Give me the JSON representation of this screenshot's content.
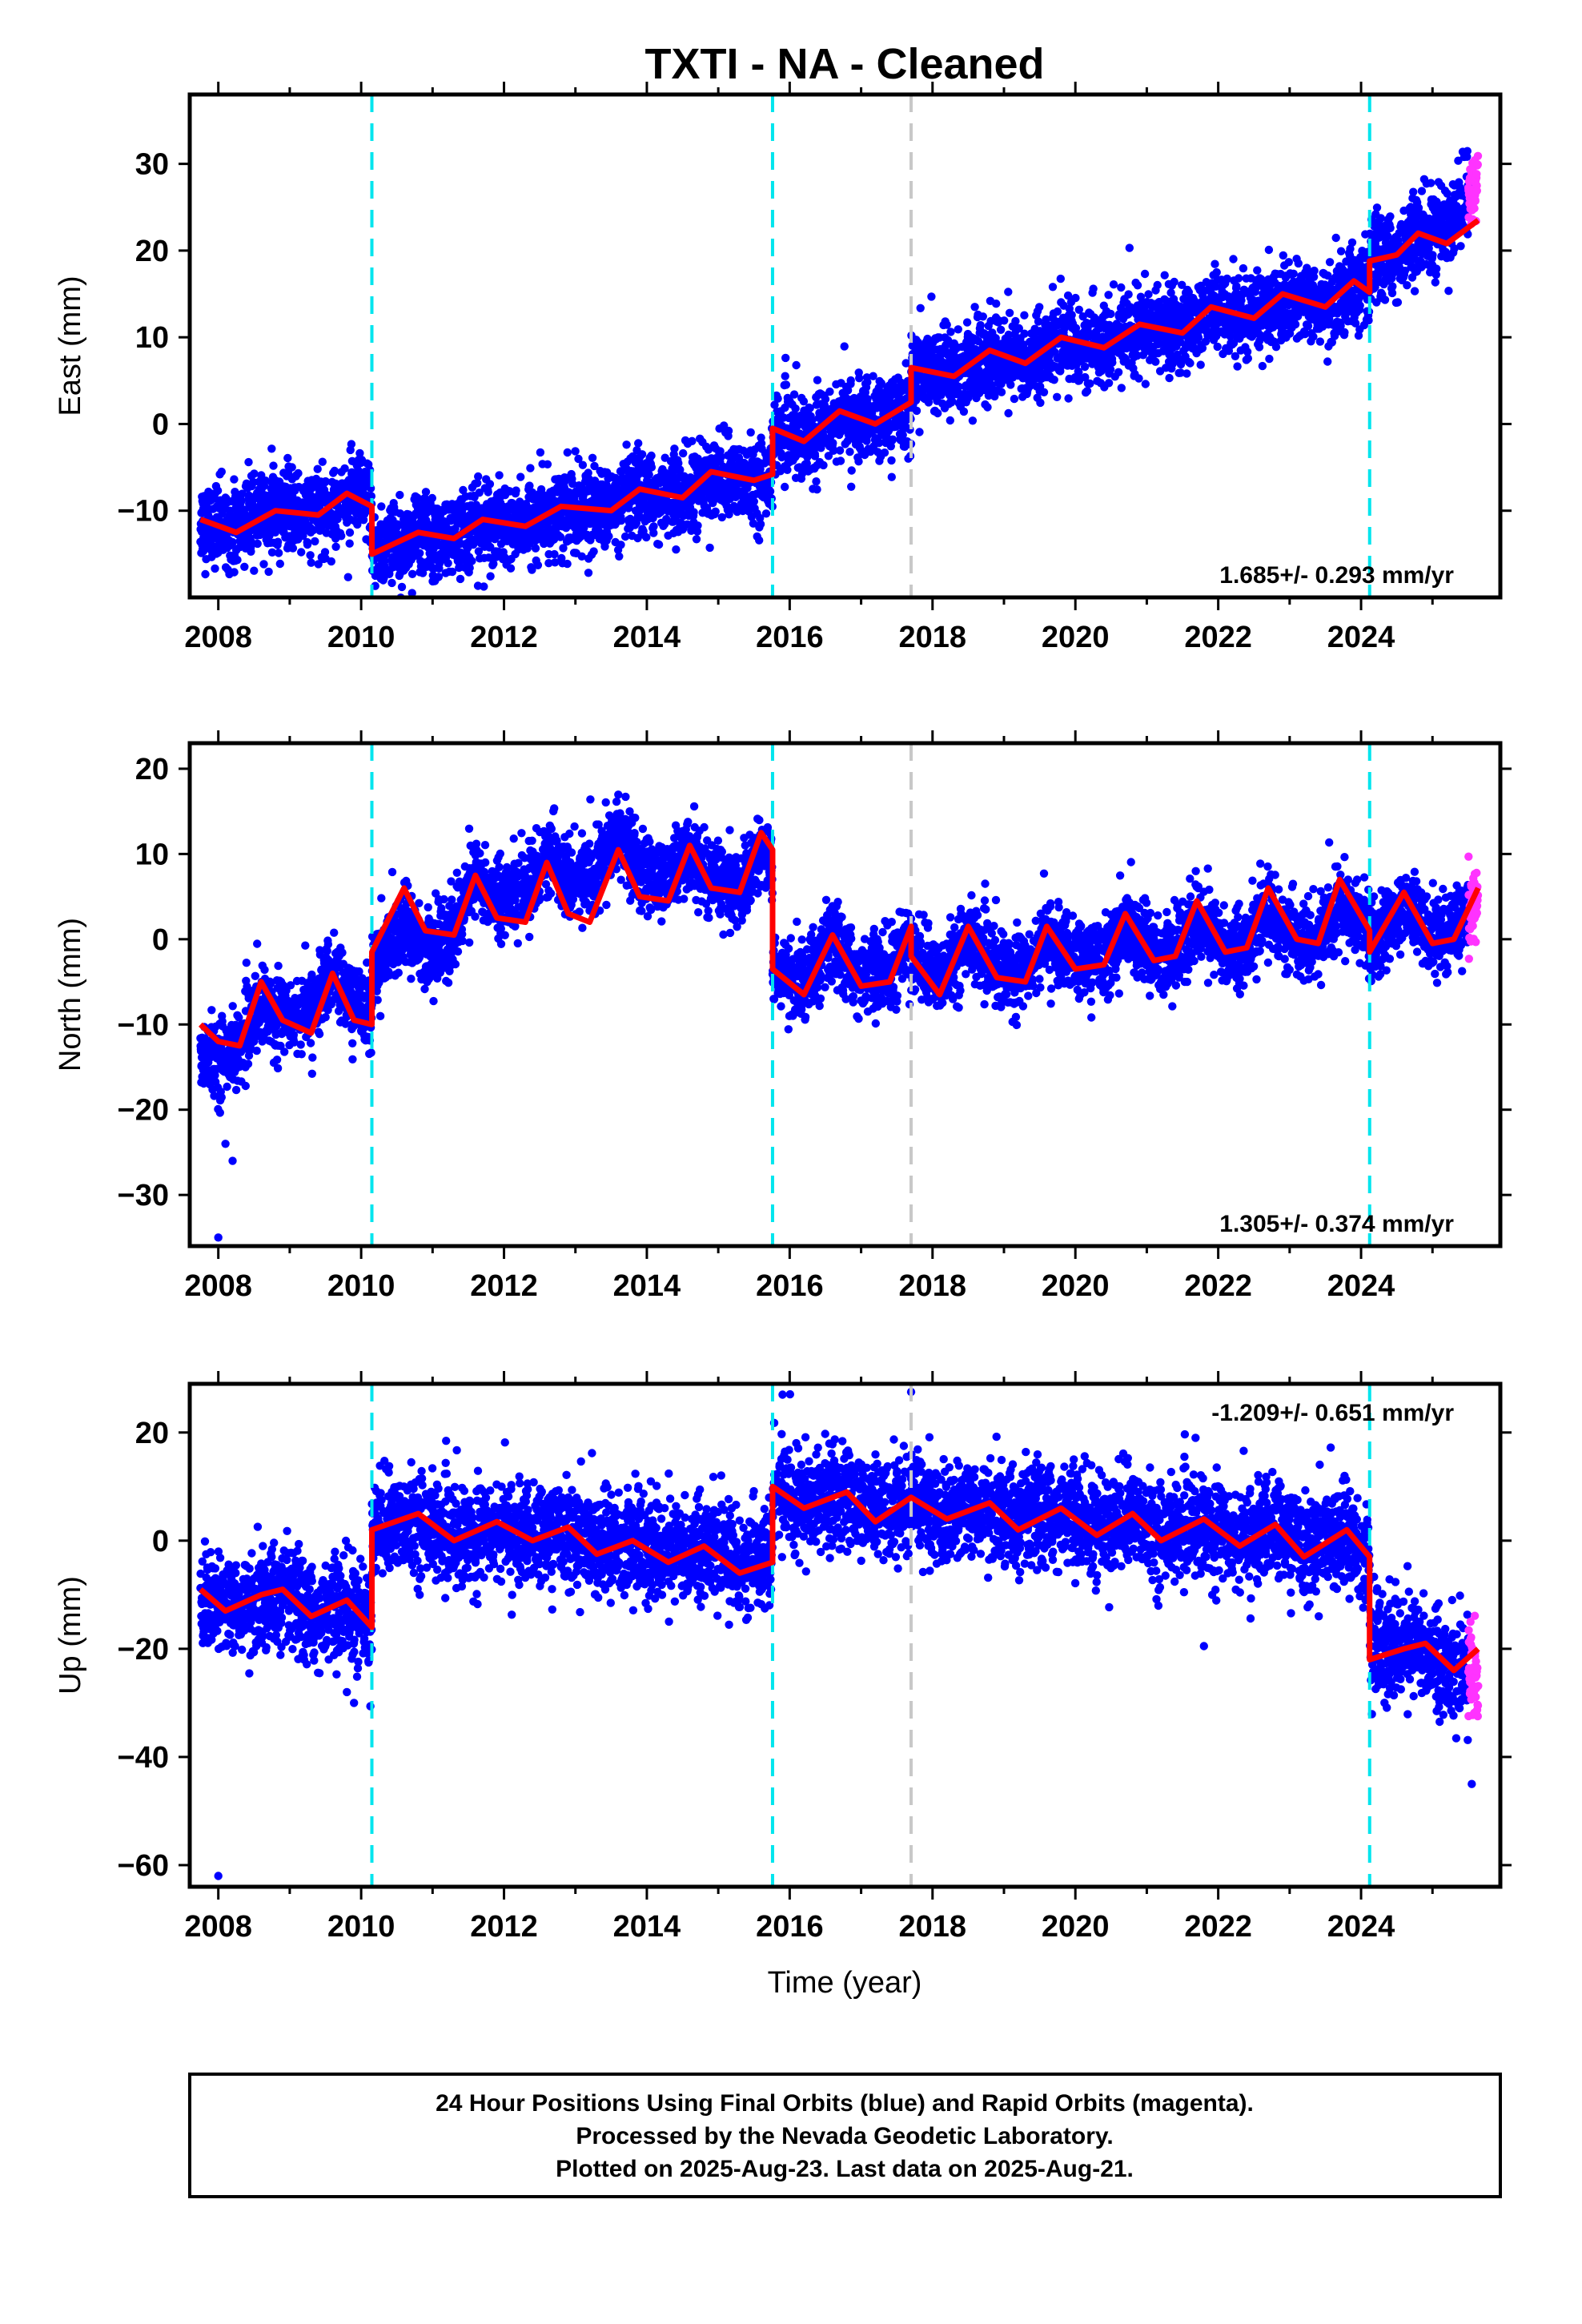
{
  "title": "TXTI  - NA - Cleaned",
  "xlabel": "Time (year)",
  "x_tick_labels": [
    "2008",
    "2010",
    "2012",
    "2014",
    "2016",
    "2018",
    "2020",
    "2022",
    "2024"
  ],
  "footer": {
    "line1": "24 Hour Positions Using Final Orbits (blue) and Rapid Orbits (magenta).",
    "line2": "Processed by the Nevada Geodetic Laboratory.",
    "line3": "Plotted on 2025-Aug-23. Last data on 2025-Aug-21."
  },
  "colors": {
    "final_orbits": "#0000ff",
    "rapid_orbits": "#ff33ff",
    "model_fit": "#ff0000",
    "equipment_change": "#00e5ee",
    "earthquake_line": "#c8c8c8"
  },
  "chart_data": [
    {
      "type": "scatter",
      "component": "East",
      "ylabel": "East (mm)",
      "xlim": [
        2007.6,
        2025.95
      ],
      "ylim": [
        -20,
        38
      ],
      "yticks": [
        -10,
        0,
        10,
        20,
        30
      ],
      "rate_label": "1.685+/- 0.293 mm/yr",
      "rate_position": "bottom-right",
      "data_span": [
        2007.75,
        2025.64
      ],
      "rapid_span": [
        2025.5,
        2025.64
      ],
      "cyan_dashed_lines": [
        2010.15,
        2015.76,
        2024.12
      ],
      "gray_dashed_lines": [
        2017.7
      ],
      "trend_points": [
        [
          2007.75,
          -11.5
        ],
        [
          2010.15,
          -8.5
        ],
        [
          2010.15,
          -14.5
        ],
        [
          2015.76,
          -6.5
        ],
        [
          2015.76,
          -1.5
        ],
        [
          2017.7,
          1
        ],
        [
          2017.7,
          5.5
        ],
        [
          2024.12,
          15
        ],
        [
          2024.12,
          18.5
        ],
        [
          2024.6,
          20
        ],
        [
          2025.0,
          23
        ],
        [
          2025.3,
          27.5
        ],
        [
          2025.64,
          33
        ]
      ],
      "model_points": [
        [
          2007.75,
          -11.0
        ],
        [
          2008.25,
          -12.5
        ],
        [
          2008.8,
          -10.0
        ],
        [
          2009.4,
          -10.5
        ],
        [
          2009.8,
          -8.0
        ],
        [
          2010.15,
          -9.5
        ],
        [
          2010.15,
          -15.0
        ],
        [
          2010.8,
          -12.5
        ],
        [
          2011.3,
          -13.2
        ],
        [
          2011.7,
          -11.0
        ],
        [
          2012.3,
          -11.8
        ],
        [
          2012.8,
          -9.5
        ],
        [
          2013.5,
          -10.0
        ],
        [
          2013.9,
          -7.5
        ],
        [
          2014.5,
          -8.5
        ],
        [
          2014.9,
          -5.5
        ],
        [
          2015.5,
          -6.5
        ],
        [
          2015.76,
          -5.8
        ],
        [
          2015.76,
          -0.5
        ],
        [
          2016.2,
          -2.0
        ],
        [
          2016.7,
          1.5
        ],
        [
          2017.2,
          0
        ],
        [
          2017.7,
          2.5
        ],
        [
          2017.7,
          6.5
        ],
        [
          2018.3,
          5.5
        ],
        [
          2018.8,
          8.5
        ],
        [
          2019.3,
          7.0
        ],
        [
          2019.8,
          10.0
        ],
        [
          2020.4,
          8.8
        ],
        [
          2020.9,
          11.5
        ],
        [
          2021.5,
          10.5
        ],
        [
          2021.9,
          13.5
        ],
        [
          2022.5,
          12.2
        ],
        [
          2022.9,
          15.0
        ],
        [
          2023.5,
          13.5
        ],
        [
          2023.9,
          16.5
        ],
        [
          2024.12,
          15.2
        ],
        [
          2024.12,
          18.8
        ],
        [
          2024.5,
          19.5
        ],
        [
          2024.8,
          22.0
        ],
        [
          2025.2,
          20.8
        ],
        [
          2025.64,
          23.5
        ]
      ],
      "noise_mm": 2.3,
      "outliers": [
        [
          2010.2,
          -17.5
        ],
        [
          2011.5,
          -17.0
        ],
        [
          2009.3,
          -16.0
        ]
      ]
    },
    {
      "type": "scatter",
      "component": "North",
      "ylabel": "North (mm)",
      "xlim": [
        2007.6,
        2025.95
      ],
      "ylim": [
        -36,
        23
      ],
      "yticks": [
        -30,
        -20,
        -10,
        0,
        10,
        20
      ],
      "rate_label": "1.305+/- 0.374 mm/yr",
      "rate_position": "bottom-right",
      "data_span": [
        2007.75,
        2025.64
      ],
      "rapid_span": [
        2025.5,
        2025.64
      ],
      "cyan_dashed_lines": [
        2010.15,
        2015.76,
        2024.12
      ],
      "gray_dashed_lines": [
        2017.7
      ],
      "trend_points": [
        [
          2007.75,
          -19
        ],
        [
          2008.25,
          -14
        ],
        [
          2008.8,
          -9
        ],
        [
          2009.4,
          -4
        ],
        [
          2010.15,
          -5
        ],
        [
          2010.15,
          -7
        ],
        [
          2011.0,
          -4
        ],
        [
          2011.5,
          6
        ],
        [
          2012.5,
          12
        ],
        [
          2013.5,
          15
        ],
        [
          2014.5,
          9
        ],
        [
          2015.76,
          6
        ],
        [
          2015.76,
          -3
        ],
        [
          2017.7,
          -2
        ],
        [
          2024.12,
          0
        ],
        [
          2025.64,
          3
        ]
      ],
      "model_points": [
        [
          2007.75,
          -10.0
        ],
        [
          2008.0,
          -12.0
        ],
        [
          2008.3,
          -12.5
        ],
        [
          2008.6,
          -5.0
        ],
        [
          2008.9,
          -9.5
        ],
        [
          2009.3,
          -11.0
        ],
        [
          2009.6,
          -4.0
        ],
        [
          2009.9,
          -9.5
        ],
        [
          2010.15,
          -10.0
        ],
        [
          2010.15,
          -1.5
        ],
        [
          2010.6,
          6.0
        ],
        [
          2010.9,
          1.0
        ],
        [
          2011.3,
          0.5
        ],
        [
          2011.6,
          7.5
        ],
        [
          2011.9,
          2.5
        ],
        [
          2012.3,
          2.0
        ],
        [
          2012.6,
          9.0
        ],
        [
          2012.9,
          3.0
        ],
        [
          2013.2,
          2.0
        ],
        [
          2013.6,
          10.5
        ],
        [
          2013.9,
          5.0
        ],
        [
          2014.3,
          4.5
        ],
        [
          2014.6,
          11.0
        ],
        [
          2014.9,
          6.0
        ],
        [
          2015.3,
          5.5
        ],
        [
          2015.6,
          12.5
        ],
        [
          2015.76,
          10.5
        ],
        [
          2015.76,
          -3.5
        ],
        [
          2016.2,
          -6.5
        ],
        [
          2016.6,
          0.5
        ],
        [
          2017.0,
          -5.5
        ],
        [
          2017.4,
          -5.0
        ],
        [
          2017.7,
          1.5
        ],
        [
          2017.7,
          -2.0
        ],
        [
          2018.1,
          -6.5
        ],
        [
          2018.5,
          1.5
        ],
        [
          2018.9,
          -4.5
        ],
        [
          2019.3,
          -5.0
        ],
        [
          2019.6,
          1.5
        ],
        [
          2020.0,
          -3.5
        ],
        [
          2020.4,
          -3.0
        ],
        [
          2020.7,
          3.0
        ],
        [
          2021.1,
          -2.5
        ],
        [
          2021.4,
          -2.0
        ],
        [
          2021.7,
          4.5
        ],
        [
          2022.1,
          -1.5
        ],
        [
          2022.4,
          -1.0
        ],
        [
          2022.7,
          6.0
        ],
        [
          2023.1,
          0
        ],
        [
          2023.4,
          -0.5
        ],
        [
          2023.7,
          7.0
        ],
        [
          2024.12,
          1.0
        ],
        [
          2024.12,
          -1.5
        ],
        [
          2024.6,
          5.5
        ],
        [
          2025.0,
          -0.5
        ],
        [
          2025.3,
          0
        ],
        [
          2025.64,
          6.0
        ]
      ],
      "noise_mm": 2.2,
      "outliers": [
        [
          2008.0,
          -35.0
        ],
        [
          2008.1,
          -24.0
        ],
        [
          2008.2,
          -26.0
        ]
      ]
    },
    {
      "type": "scatter",
      "component": "Up",
      "ylabel": "Up (mm)",
      "xlim": [
        2007.6,
        2025.95
      ],
      "ylim": [
        -64,
        29
      ],
      "yticks": [
        -60,
        -40,
        -20,
        0,
        20
      ],
      "rate_label": "-1.209+/- 0.651 mm/yr",
      "rate_position": "top-right",
      "data_span": [
        2007.75,
        2025.64
      ],
      "rapid_span": [
        2025.5,
        2025.64
      ],
      "cyan_dashed_lines": [
        2010.15,
        2015.76,
        2024.12
      ],
      "gray_dashed_lines": [
        2017.7
      ],
      "trend_points": [
        [
          2007.75,
          -11
        ],
        [
          2010.15,
          -15
        ],
        [
          2010.15,
          2
        ],
        [
          2015.76,
          -1
        ],
        [
          2015.76,
          8
        ],
        [
          2023.5,
          1
        ],
        [
          2024.12,
          -5
        ],
        [
          2024.12,
          -15
        ],
        [
          2025.0,
          -22
        ],
        [
          2025.64,
          -30
        ]
      ],
      "model_points": [
        [
          2007.75,
          -9
        ],
        [
          2008.1,
          -13
        ],
        [
          2008.6,
          -10
        ],
        [
          2008.9,
          -9
        ],
        [
          2009.3,
          -14
        ],
        [
          2009.8,
          -11
        ],
        [
          2010.15,
          -16
        ],
        [
          2010.15,
          2
        ],
        [
          2010.8,
          5
        ],
        [
          2011.3,
          0
        ],
        [
          2011.9,
          3.5
        ],
        [
          2012.4,
          0
        ],
        [
          2012.9,
          2.5
        ],
        [
          2013.3,
          -2.5
        ],
        [
          2013.8,
          0
        ],
        [
          2014.3,
          -4
        ],
        [
          2014.8,
          -1
        ],
        [
          2015.3,
          -6
        ],
        [
          2015.76,
          -4
        ],
        [
          2015.76,
          10
        ],
        [
          2016.2,
          6
        ],
        [
          2016.8,
          9
        ],
        [
          2017.2,
          3.5
        ],
        [
          2017.7,
          8
        ],
        [
          2018.2,
          4
        ],
        [
          2018.8,
          7
        ],
        [
          2019.2,
          2
        ],
        [
          2019.8,
          6
        ],
        [
          2020.3,
          1
        ],
        [
          2020.8,
          5
        ],
        [
          2021.2,
          0
        ],
        [
          2021.8,
          4
        ],
        [
          2022.3,
          -1
        ],
        [
          2022.8,
          3
        ],
        [
          2023.2,
          -3
        ],
        [
          2023.8,
          2
        ],
        [
          2024.12,
          -3
        ],
        [
          2024.12,
          -22
        ],
        [
          2024.6,
          -20
        ],
        [
          2024.9,
          -19
        ],
        [
          2025.3,
          -24
        ],
        [
          2025.64,
          -20
        ]
      ],
      "noise_mm": 4.5,
      "outliers": [
        [
          2008.0,
          -62.0
        ],
        [
          2015.9,
          27.0
        ],
        [
          2017.7,
          27.5
        ],
        [
          2021.8,
          -19.5
        ],
        [
          2009.9,
          -30.0
        ],
        [
          2009.8,
          -28.0
        ],
        [
          2025.55,
          -45.0
        ]
      ]
    }
  ]
}
